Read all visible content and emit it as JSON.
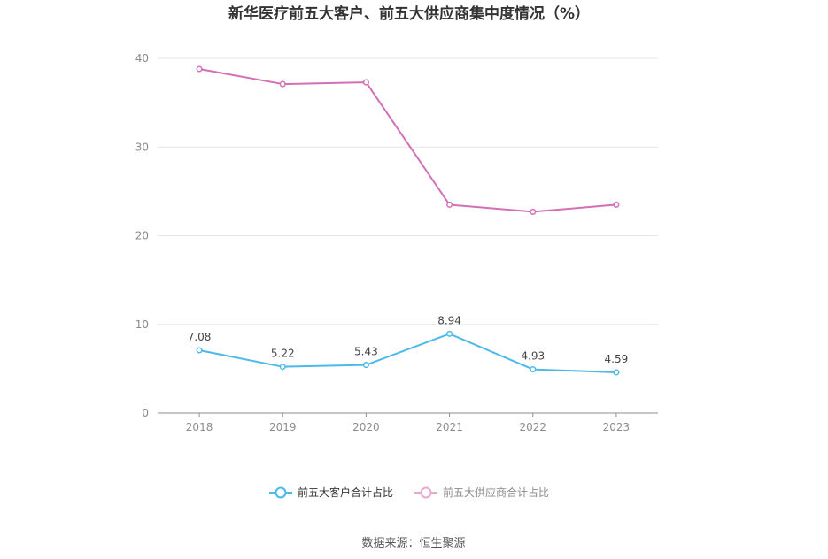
{
  "chart_data": {
    "type": "line",
    "title": "新华医疗前五大客户、前五大供应商集中度情况（%）",
    "categories": [
      "2018",
      "2019",
      "2020",
      "2021",
      "2022",
      "2023"
    ],
    "ylim": [
      0,
      40
    ],
    "yticks": [
      0,
      10,
      20,
      30,
      40
    ],
    "grid": true,
    "legend_position": "bottom",
    "series": [
      {
        "name": "前五大客户合计占比",
        "values": [
          7.08,
          5.22,
          5.43,
          8.94,
          4.93,
          4.59
        ],
        "labels": [
          "7.08",
          "5.22",
          "5.43",
          "8.94",
          "4.93",
          "4.59"
        ],
        "color": "#4cb9ea"
      },
      {
        "name": "前五大供应商合计占比",
        "values": [
          38.8,
          37.1,
          37.3,
          23.5,
          22.7,
          23.5
        ],
        "color": "#d36fb4",
        "legend_color": "#e7a9d2"
      }
    ],
    "source": "数据来源：恒生聚源"
  }
}
